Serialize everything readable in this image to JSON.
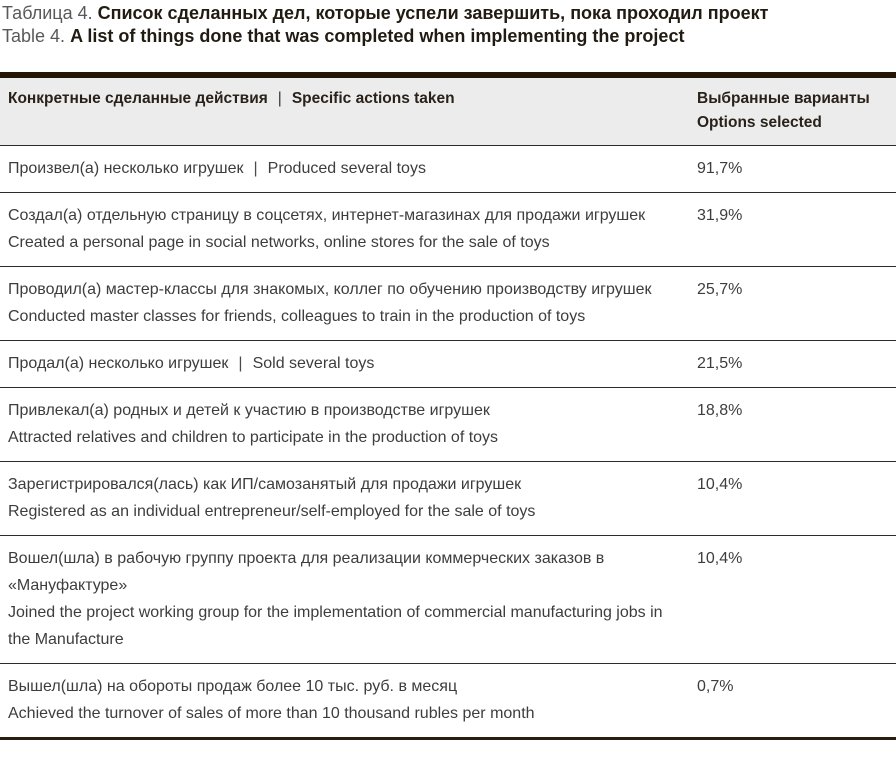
{
  "caption": {
    "ru_label": "Таблица 4.",
    "ru_title": "Список сделанных дел, которые успели завершить, пока проходил проект",
    "en_label": "Table 4.",
    "en_title": "A list of things done that was completed when implementing the project"
  },
  "table": {
    "pipe": "|",
    "header": {
      "actions_ru": "Конкретные сделанные действия",
      "actions_en": "Specific actions taken",
      "options_ru": "Выбранные варианты",
      "options_en": "Options selected"
    },
    "rows": [
      {
        "ru": "Произвел(а) несколько игрушек",
        "en": "Produced several toys",
        "value": "91,7%"
      },
      {
        "ru": "Создал(а) отдельную страницу в соцсетях, интернет-магазинах для продажи игрушек",
        "en": "Created a personal page in social networks, online stores for the sale of toys",
        "value": "31,9%"
      },
      {
        "ru": "Проводил(а) мастер-классы для знакомых, коллег по обучению производству игрушек",
        "en": "Conducted master classes for friends, colleagues to train in the production of toys",
        "value": "25,7%"
      },
      {
        "ru": "Продал(а) несколько игрушек",
        "en": "Sold several toys",
        "value": "21,5%"
      },
      {
        "ru": "Привлекал(а) родных и детей к участию в производстве игрушек",
        "en": "Attracted relatives and children to participate in the production of toys",
        "value": "18,8%"
      },
      {
        "ru": "Зарегистрировался(лась) как ИП/самозанятый для продажи игрушек",
        "en": "Registered as an individual entrepreneur/self-employed for the sale of toys",
        "value": "10,4%"
      },
      {
        "ru": "Вошел(шла) в рабочую группу проекта для реализации коммерческих заказов в «Мануфактуре»",
        "en": "Joined the project working group for the implementation of commercial manufacturing jobs in the Manufacture",
        "value": "10,4%"
      },
      {
        "ru": "Вышел(шла) на обороты продаж более 10 тыс. руб. в месяц",
        "en": "Achieved the turnover of sales of more than 10 thousand rubles per month",
        "value": "0,7%"
      }
    ]
  },
  "colors": {
    "top_border": "#241505",
    "bottom_border": "#2a1d10",
    "row_separator": "#2b2b2b",
    "header_background": "#ececec",
    "body_text": "#3d3d3d",
    "heading_text": "#2a221a",
    "caption_label_text": "#595959",
    "caption_title_text": "#221b12"
  }
}
